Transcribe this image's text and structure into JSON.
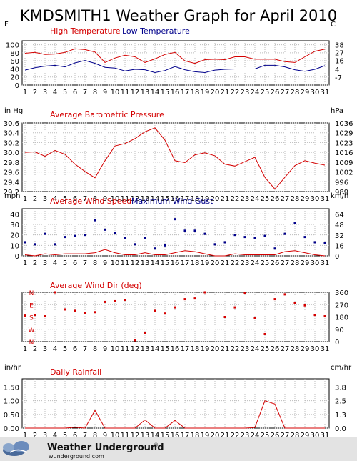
{
  "page": {
    "title": "KMDSMITH1 Weather Graph for April 2010",
    "footer_brand": "Weather Underground",
    "footer_url": "wunderground.com"
  },
  "colors": {
    "red": "#d40000",
    "blue": "#00008b",
    "grid": "#bbbbbb",
    "axis": "#000000",
    "footer_bg": "#e3e3e3"
  },
  "chart_data": [
    {
      "id": "temperature",
      "type": "line",
      "left_unit": "F",
      "right_unit": "C",
      "x": [
        1,
        2,
        3,
        4,
        5,
        6,
        7,
        8,
        9,
        10,
        11,
        12,
        13,
        14,
        15,
        16,
        17,
        18,
        19,
        20,
        21,
        22,
        23,
        24,
        25,
        26,
        27,
        28,
        29,
        30,
        31
      ],
      "series": [
        {
          "name": "High Temperature",
          "color": "#d40000",
          "values": [
            79,
            81,
            76,
            77,
            81,
            90,
            88,
            82,
            56,
            67,
            74,
            70,
            56,
            65,
            76,
            81,
            60,
            54,
            63,
            64,
            63,
            70,
            70,
            64,
            64,
            64,
            58,
            56,
            70,
            84,
            89
          ]
        },
        {
          "name": "Low Temperature",
          "color": "#00008b",
          "values": [
            37,
            43,
            47,
            49,
            45,
            55,
            61,
            54,
            44,
            42,
            35,
            39,
            38,
            31,
            36,
            46,
            38,
            33,
            31,
            37,
            39,
            40,
            40,
            40,
            49,
            49,
            45,
            38,
            34,
            39,
            48
          ]
        }
      ],
      "ylim": [
        0,
        110
      ],
      "left_ticks": [
        "0",
        "20",
        "40",
        "60",
        "80",
        "100"
      ],
      "right_ticks": [
        "-7",
        "4",
        "16",
        "27",
        "38"
      ],
      "right_tick_values": [
        -7,
        4,
        16,
        27,
        38
      ]
    },
    {
      "id": "pressure",
      "type": "line",
      "left_unit": "in Hg",
      "right_unit": "hPa",
      "x": [
        1,
        2,
        3,
        4,
        5,
        6,
        7,
        8,
        9,
        10,
        11,
        12,
        13,
        14,
        15,
        16,
        17,
        18,
        19,
        20,
        21,
        22,
        23,
        24,
        25,
        26,
        27,
        28,
        29,
        30,
        31
      ],
      "series": [
        {
          "name": "Average Barometric Pressure",
          "color": "#d40000",
          "values": [
            30.0,
            30.01,
            29.92,
            30.04,
            29.96,
            29.76,
            29.61,
            29.48,
            29.83,
            30.13,
            30.18,
            30.28,
            30.42,
            30.5,
            30.25,
            29.83,
            29.79,
            29.95,
            29.99,
            29.93,
            29.76,
            29.72,
            29.81,
            29.9,
            29.49,
            29.25,
            29.49,
            29.73,
            29.83,
            29.78,
            29.74
          ]
        }
      ],
      "ylim": [
        29.2,
        30.6
      ],
      "left_ticks": [
        "29.2",
        "29.4",
        "29.6",
        "29.8",
        "30.0",
        "30.2",
        "30.4",
        "30.6"
      ],
      "right_ticks": [
        "989",
        "996",
        "1002",
        "1009",
        "1016",
        "1023",
        "1029",
        "1036"
      ]
    },
    {
      "id": "wind",
      "type": "line",
      "left_unit": "mph",
      "right_unit": "km/h",
      "x": [
        1,
        2,
        3,
        4,
        5,
        6,
        7,
        8,
        9,
        10,
        11,
        12,
        13,
        14,
        15,
        16,
        17,
        18,
        19,
        20,
        21,
        22,
        23,
        24,
        25,
        26,
        27,
        28,
        29,
        30,
        31
      ],
      "series": [
        {
          "name": "Average Wind Speed",
          "color": "#d40000",
          "style": "line",
          "values": [
            1,
            0,
            2,
            1,
            2,
            2,
            2,
            3,
            6,
            3,
            1,
            1,
            3,
            1,
            1,
            3,
            5,
            4,
            2,
            0,
            0,
            2,
            1,
            1,
            1,
            1,
            4,
            5,
            3,
            1,
            0
          ]
        },
        {
          "name": "Maximum Wind Gust",
          "color": "#00008b",
          "style": "dots",
          "values": [
            13,
            11,
            21,
            11,
            18,
            19,
            20,
            34,
            25,
            22,
            17,
            11,
            17,
            7,
            10,
            35,
            24,
            24,
            21,
            11,
            13,
            20,
            18,
            17,
            19,
            7,
            21,
            31,
            18,
            13,
            12
          ]
        }
      ],
      "ylim": [
        0,
        45
      ],
      "left_ticks": [
        "0",
        "10",
        "20",
        "30",
        "40"
      ],
      "right_ticks": [
        "0",
        "16",
        "32",
        "48",
        "64"
      ],
      "right_tick_values": [
        0,
        16,
        32,
        48,
        64
      ]
    },
    {
      "id": "winddir",
      "type": "scatter",
      "left_unit": "",
      "right_unit": "",
      "x": [
        1,
        2,
        3,
        4,
        5,
        6,
        7,
        8,
        9,
        10,
        11,
        12,
        13,
        14,
        15,
        16,
        17,
        18,
        19,
        20,
        21,
        22,
        23,
        24,
        25,
        26,
        27,
        28,
        29,
        30,
        31
      ],
      "series": [
        {
          "name": "Average Wind Dir (deg)",
          "color": "#d40000",
          "values": [
            190,
            195,
            185,
            360,
            235,
            225,
            210,
            215,
            290,
            295,
            305,
            10,
            60,
            225,
            205,
            250,
            310,
            315,
            360,
            null,
            180,
            250,
            355,
            170,
            55,
            310,
            345,
            280,
            265,
            195,
            185
          ]
        }
      ],
      "ylim": [
        0,
        360
      ],
      "left_ticks": [
        "N",
        "W",
        "S",
        "E",
        "N"
      ],
      "right_ticks": [
        "0",
        "90",
        "180",
        "270",
        "360"
      ]
    },
    {
      "id": "rain",
      "type": "line",
      "left_unit": "in/hr",
      "right_unit": "cm/hr",
      "x": [
        1,
        2,
        3,
        4,
        5,
        6,
        7,
        8,
        9,
        10,
        11,
        12,
        13,
        14,
        15,
        16,
        17,
        18,
        19,
        20,
        21,
        22,
        23,
        24,
        25,
        26,
        27,
        28,
        29,
        30,
        31
      ],
      "series": [
        {
          "name": "Daily Rainfall",
          "color": "#d40000",
          "values": [
            0,
            0,
            0,
            0,
            0,
            0.03,
            0,
            0.65,
            0,
            0,
            0,
            0,
            0.3,
            0,
            0,
            0.28,
            0,
            0,
            0,
            0,
            0,
            0,
            0,
            0.02,
            1.0,
            0.88,
            0,
            0,
            0,
            0,
            0
          ]
        }
      ],
      "ylim": [
        0,
        1.8
      ],
      "left_ticks": [
        "0.00",
        "0.50",
        "1.00",
        "1.50"
      ],
      "right_ticks": [
        "0.0",
        "1.3",
        "2.5",
        "3.8"
      ],
      "right_tick_values": [
        0,
        1.3,
        2.5,
        3.8
      ],
      "right_tick_scale": 2.54
    }
  ]
}
